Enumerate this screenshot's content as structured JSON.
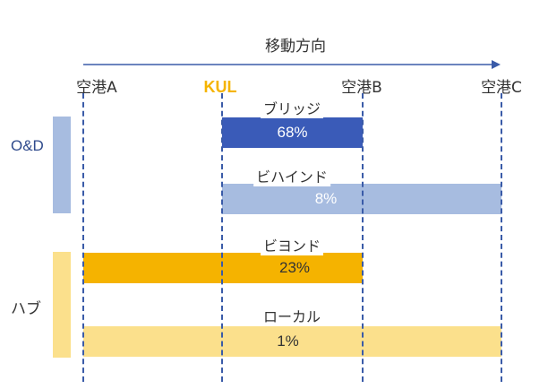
{
  "direction": {
    "label": "移動方向"
  },
  "airports": [
    {
      "id": "a",
      "label": "空港A"
    },
    {
      "id": "kul",
      "label": "KUL"
    },
    {
      "id": "b",
      "label": "空港B"
    },
    {
      "id": "c",
      "label": "空港C"
    }
  ],
  "groups": [
    {
      "id": "od",
      "label": "O&D"
    },
    {
      "id": "hub",
      "label": "ハブ"
    }
  ],
  "routes": [
    {
      "id": "bridge",
      "name": "ブリッジ",
      "share": "68%",
      "from": "KUL",
      "to": "空港B"
    },
    {
      "id": "behind",
      "name": "ビハインド",
      "share": "8%",
      "from": "KUL",
      "to": "空港C"
    },
    {
      "id": "beyond",
      "name": "ビヨンド",
      "share": "23%",
      "from": "空港A",
      "to": "空港B"
    },
    {
      "id": "local",
      "name": "ローカル",
      "share": "1%",
      "from": "空港A",
      "to": "空港C"
    }
  ],
  "colors": {
    "bridge": "#3A5BB8",
    "behind": "#A7BCE0",
    "beyond": "#F5B300",
    "local": "#FBE08C",
    "od_group": "#A7BCE0",
    "hub_group": "#FBE08C",
    "kul_text": "#F5B400",
    "axis": "#3A5BA8"
  }
}
